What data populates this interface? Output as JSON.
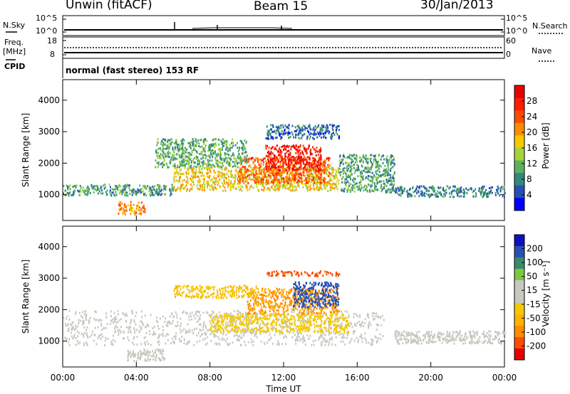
{
  "header": {
    "radar": "Unwin (fitACF)",
    "beam": "Beam 15",
    "date": "30/Jan/2013"
  },
  "noise_panel": {
    "left_label": "N.Sky",
    "right_label": "N.Search",
    "tick_top": "10^5",
    "tick_bottom": "10^0"
  },
  "freq_panel": {
    "left_label_top": "Freq.",
    "left_label_bottom": "[MHz]",
    "left_tick_top": "18",
    "left_tick_bottom": "8",
    "right_label": "Nave",
    "right_tick_top": "60",
    "right_tick_bottom": "0"
  },
  "cpid": {
    "label": "CPID",
    "text": "normal (fast stereo) 153 RF"
  },
  "colors": {
    "power_scale": [
      "#0000ff",
      "#2850b4",
      "#33887f",
      "#5bb25c",
      "#a6d23c",
      "#f5c900",
      "#ff8c00",
      "#ff4b00",
      "#ff1a00",
      "#e60000"
    ],
    "velocity_scale": [
      "#e60000",
      "#ff4b00",
      "#ff8c00",
      "#ffb400",
      "#f5c900",
      "#c8c8c0",
      "#c8c8c0",
      "#7cc840",
      "#3a8a6a",
      "#2850b4",
      "#1010c0"
    ],
    "gray": "#c8c8c0"
  },
  "chart_data": [
    {
      "type": "heatmap",
      "title": "",
      "xlabel": "Time UT",
      "ylabel": "Slant Range [km]",
      "xlim": [
        0,
        24
      ],
      "ylim": [
        180,
        4650
      ],
      "x_ticks": [
        "00:00",
        "04:00",
        "08:00",
        "12:00",
        "16:00",
        "20:00",
        "00:00"
      ],
      "y_ticks": [
        1000,
        2000,
        3000,
        4000
      ],
      "colorbar": {
        "label": "Power [dB]",
        "ticks": [
          4,
          8,
          12,
          16,
          20,
          24,
          28
        ],
        "range": [
          0,
          30
        ]
      },
      "regions": [
        {
          "x0": 6.0,
          "x1": 15.0,
          "y0": 1150,
          "y1": 1900,
          "value": 16
        },
        {
          "x0": 9.5,
          "x1": 14.5,
          "y0": 1400,
          "y1": 2200,
          "value": 22
        },
        {
          "x0": 11.0,
          "x1": 14.0,
          "y0": 1800,
          "y1": 2600,
          "value": 26
        },
        {
          "x0": 5.0,
          "x1": 10.0,
          "y0": 1900,
          "y1": 2800,
          "value": 10
        },
        {
          "x0": 11.0,
          "x1": 15.0,
          "y0": 2800,
          "y1": 3250,
          "value": 6
        },
        {
          "x0": 0.0,
          "x1": 6.0,
          "y0": 1000,
          "y1": 1350,
          "value": 9
        },
        {
          "x0": 3.0,
          "x1": 4.5,
          "y0": 400,
          "y1": 800,
          "value": 20
        },
        {
          "x0": 15.0,
          "x1": 18.0,
          "y0": 1100,
          "y1": 2300,
          "value": 9
        },
        {
          "x0": 18.0,
          "x1": 24.0,
          "y0": 950,
          "y1": 1300,
          "value": 7
        }
      ]
    },
    {
      "type": "heatmap",
      "title": "",
      "xlabel": "Time UT",
      "ylabel": "Slant Range [km]",
      "xlim": [
        0,
        24
      ],
      "ylim": [
        180,
        4650
      ],
      "x_ticks": [
        "00:00",
        "04:00",
        "08:00",
        "12:00",
        "16:00",
        "20:00",
        "00:00"
      ],
      "y_ticks": [
        1000,
        2000,
        3000,
        4000
      ],
      "colorbar": {
        "label": "Velocity [m s⁻¹]",
        "ticks": [
          "-200",
          "-100",
          "-50",
          "-15",
          "15",
          "50",
          "100",
          "200"
        ],
        "range": [
          -250,
          250
        ]
      },
      "regions": [
        {
          "x0": 0.0,
          "x1": 17.5,
          "y0": 900,
          "y1": 2000,
          "value": 0
        },
        {
          "x0": 8.0,
          "x1": 15.5,
          "y0": 1300,
          "y1": 1900,
          "value": -40
        },
        {
          "x0": 10.0,
          "x1": 15.0,
          "y0": 1900,
          "y1": 2700,
          "value": -120
        },
        {
          "x0": 12.5,
          "x1": 15.0,
          "y0": 2100,
          "y1": 2900,
          "value": 180
        },
        {
          "x0": 6.0,
          "x1": 10.5,
          "y0": 2400,
          "y1": 2800,
          "value": -60
        },
        {
          "x0": 11.0,
          "x1": 15.0,
          "y0": 3100,
          "y1": 3250,
          "value": -180
        },
        {
          "x0": 18.0,
          "x1": 24.0,
          "y0": 950,
          "y1": 1350,
          "value": 0
        },
        {
          "x0": 3.5,
          "x1": 5.5,
          "y0": 400,
          "y1": 800,
          "value": 0
        }
      ]
    }
  ]
}
